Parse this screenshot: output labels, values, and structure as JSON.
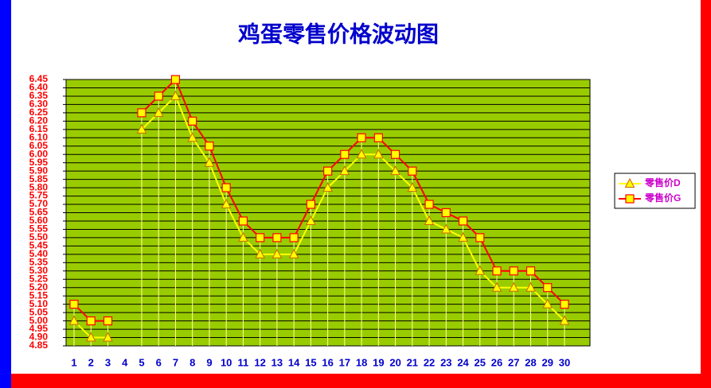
{
  "chart_data": {
    "type": "line",
    "title": "鸡蛋零售价格波动图",
    "categories": [
      "1",
      "2",
      "3",
      "4",
      "5",
      "6",
      "7",
      "8",
      "9",
      "10",
      "11",
      "12",
      "13",
      "14",
      "15",
      "16",
      "17",
      "18",
      "19",
      "20",
      "21",
      "22",
      "23",
      "24",
      "25",
      "26",
      "27",
      "28",
      "29",
      "30"
    ],
    "series": [
      {
        "name": "零售价D",
        "color": "#ffff00",
        "marker": "triangle",
        "values": [
          5.0,
          4.9,
          4.9,
          null,
          6.15,
          6.25,
          6.35,
          6.1,
          5.95,
          5.7,
          5.5,
          5.4,
          5.4,
          5.4,
          5.6,
          5.8,
          5.9,
          6.0,
          6.0,
          5.9,
          5.8,
          5.6,
          5.55,
          5.5,
          5.3,
          5.2,
          5.2,
          5.2,
          5.1,
          5.0
        ]
      },
      {
        "name": "零售价G",
        "color": "#ff0000",
        "marker": "square",
        "values": [
          5.1,
          5.0,
          5.0,
          null,
          6.25,
          6.35,
          6.45,
          6.2,
          6.05,
          5.8,
          5.6,
          5.5,
          5.5,
          5.5,
          5.7,
          5.9,
          6.0,
          6.1,
          6.1,
          6.0,
          5.9,
          5.7,
          5.65,
          5.6,
          5.5,
          5.3,
          5.3,
          5.3,
          5.2,
          5.1
        ]
      }
    ],
    "ylim": [
      4.85,
      6.45
    ],
    "yticks": [
      4.85,
      {
        "value": 4.9,
        "label": "4.90"
      },
      4.95,
      {
        "value": 5.0,
        "label": "5.00"
      },
      5.05,
      {
        "value": 5.1,
        "label": "5.10"
      },
      5.15,
      {
        "value": 5.2,
        "label": "5.20"
      },
      5.25,
      {
        "value": 5.3,
        "label": "5.30"
      },
      5.35,
      {
        "value": 5.4,
        "label": "5.40"
      },
      5.45,
      {
        "value": 5.5,
        "label": "5.50"
      },
      5.55,
      {
        "value": 5.6,
        "label": "5.60"
      },
      5.65,
      {
        "value": 5.7,
        "label": "5.70"
      },
      5.75,
      {
        "value": 5.8,
        "label": "5.80"
      },
      5.85,
      {
        "value": 5.9,
        "label": "5.90"
      },
      5.95,
      {
        "value": 6.0,
        "label": "6.00"
      },
      6.05,
      {
        "value": 6.1,
        "label": "6.10"
      },
      6.15,
      {
        "value": 6.2,
        "label": "6.20"
      },
      6.25,
      {
        "value": 6.3,
        "label": "6.30"
      },
      6.35,
      {
        "value": 6.4,
        "label": "6.40"
      },
      6.45
    ],
    "grid": true,
    "legend": "right"
  }
}
